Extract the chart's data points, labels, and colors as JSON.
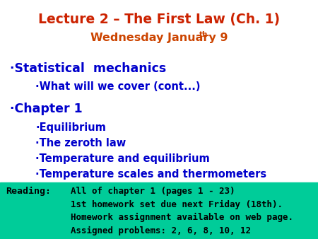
{
  "title_line1": "Lecture 2 – The First Law (Ch. 1)",
  "title_line2_main": "Wednesday January 9",
  "title_line2_super": "th",
  "title_color": "#CC2200",
  "subtitle_color": "#CC4400",
  "bullet_color": "#0000CC",
  "background_color": "#FFFFFF",
  "reading_bg_color": "#00CC99",
  "reading_text_color": "#000000",
  "bullet1_main": "·Statistical  mechanics",
  "bullet1_sub": "·What will we cover (cont...)",
  "bullet2_main": "·Chapter 1",
  "bullet2_subs": [
    "·Equilibrium",
    "·The zeroth law",
    "·Temperature and equilibrium",
    "·Temperature scales and thermometers"
  ],
  "reading_label": "Reading:",
  "reading_lines": [
    "All of chapter 1 (pages 1 - 23)",
    "1st homework set due next Friday (18th).",
    "Homework assignment available on web page.",
    "Assigned problems: 2, 6, 8, 10, 12"
  ],
  "title_fontsize": 13.5,
  "subtitle_fontsize": 11.5,
  "bullet_main_fontsize": 12.5,
  "bullet_sub_fontsize": 10.5,
  "reading_label_fontsize": 9.5,
  "reading_text_fontsize": 9.0
}
